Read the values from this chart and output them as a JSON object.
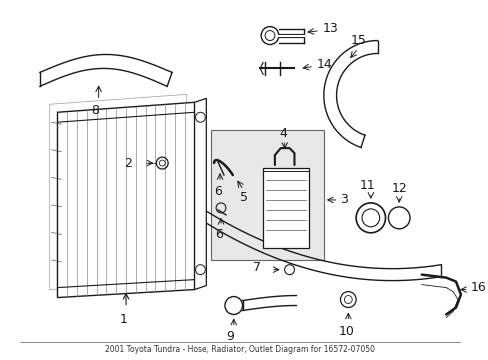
{
  "bg_color": "#ffffff",
  "line_color": "#1a1a1a",
  "box_fill": "#e0e0e0",
  "fig_width": 4.89,
  "fig_height": 3.6,
  "dpi": 100,
  "title": "2001 Toyota Tundra - Hose, Radiator, Outlet Diagram for 16572-07050"
}
